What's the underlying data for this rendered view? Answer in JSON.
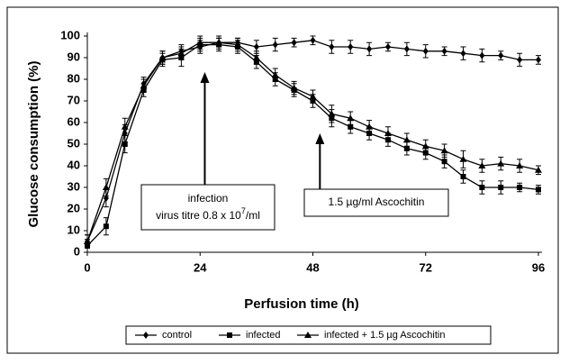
{
  "chart_data": {
    "type": "line",
    "x_label": "Perfusion time (h)",
    "y_label": "Glucose consumption (%)",
    "xlim": [
      0,
      96
    ],
    "xticks": [
      0,
      24,
      48,
      72,
      96
    ],
    "ylim": [
      0,
      100
    ],
    "yticks": [
      0,
      10,
      20,
      30,
      40,
      50,
      60,
      70,
      80,
      90,
      100
    ],
    "grid": false,
    "x": [
      0,
      4,
      8,
      12,
      16,
      20,
      24,
      28,
      32,
      36,
      40,
      44,
      48,
      52,
      56,
      60,
      64,
      68,
      72,
      76,
      80,
      84,
      88,
      92,
      96
    ],
    "series": [
      {
        "name": "control",
        "color": "#000000",
        "marker": "diamond",
        "values": [
          5,
          25,
          55,
          78,
          90,
          93,
          95,
          97,
          97,
          95,
          96,
          97,
          98,
          95,
          95,
          94,
          95,
          94,
          93,
          93,
          92,
          91,
          91,
          89,
          89
        ],
        "errors": [
          3,
          4,
          4,
          3,
          3,
          3,
          3,
          2,
          2,
          3,
          3,
          2,
          2,
          3,
          3,
          3,
          2,
          3,
          3,
          2,
          3,
          3,
          2,
          3,
          2
        ]
      },
      {
        "name": "infected",
        "color": "#000000",
        "marker": "square",
        "values": [
          3,
          12,
          50,
          75,
          89,
          90,
          96,
          96,
          95,
          88,
          80,
          75,
          70,
          62,
          58,
          55,
          52,
          48,
          46,
          42,
          35,
          30,
          30,
          30,
          29
        ],
        "errors": [
          3,
          4,
          4,
          3,
          3,
          4,
          3,
          3,
          3,
          3,
          3,
          3,
          3,
          4,
          3,
          3,
          3,
          3,
          3,
          3,
          3,
          3,
          3,
          2,
          2
        ]
      },
      {
        "name": "infected + 1.5 µg Ascochitin",
        "color": "#000000",
        "marker": "triangle",
        "values": [
          5,
          30,
          58,
          77,
          90,
          92,
          97,
          97,
          96,
          90,
          82,
          76,
          72,
          64,
          62,
          58,
          55,
          52,
          49,
          47,
          43,
          40,
          41,
          40,
          38
        ],
        "errors": [
          3,
          4,
          4,
          3,
          3,
          3,
          3,
          3,
          3,
          3,
          3,
          3,
          3,
          4,
          3,
          3,
          3,
          3,
          3,
          3,
          4,
          3,
          3,
          3,
          2
        ]
      }
    ],
    "annotations": [
      {
        "line1": "infection",
        "line2": "virus titre 0.8 x 10",
        "sup": "7",
        "after": "/ml",
        "x": 25
      },
      {
        "text": "1.5 µg/ml Ascochitin",
        "x": 49.5
      }
    ]
  }
}
